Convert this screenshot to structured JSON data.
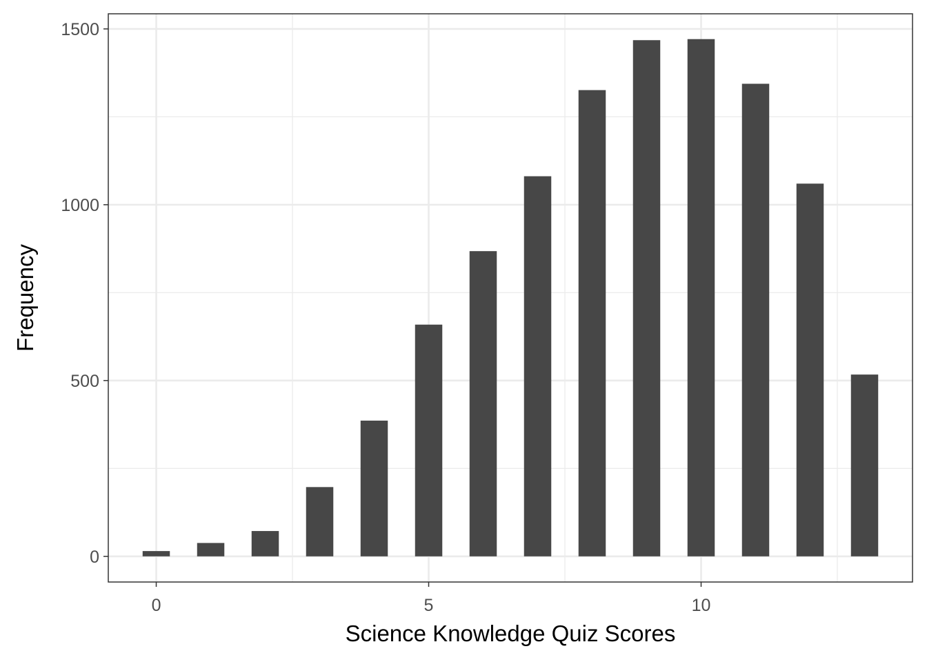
{
  "chart_data": {
    "type": "bar",
    "title": "",
    "xlabel": "Science Knowledge Quiz Scores",
    "ylabel": "Frequency",
    "x": [
      0,
      1,
      2,
      3,
      4,
      5,
      6,
      7,
      8,
      9,
      10,
      11,
      12,
      13
    ],
    "values": [
      15,
      38,
      72,
      197,
      386,
      659,
      868,
      1081,
      1326,
      1468,
      1471,
      1344,
      1060,
      517
    ],
    "xlim": [
      -0.88,
      13.88
    ],
    "ylim": [
      -73,
      1543
    ],
    "x_ticks": [
      0,
      5,
      10
    ],
    "x_minor_ticks": [
      2.5,
      7.5,
      12.5
    ],
    "y_ticks": [
      0,
      500,
      1000,
      1500
    ],
    "y_minor_ticks": [
      250,
      750,
      1250
    ],
    "grid": true,
    "colors": {
      "bar": "#474747",
      "grid": "#ebebeb",
      "panel_border": "#333333",
      "tick_text": "#4d4d4d"
    }
  }
}
